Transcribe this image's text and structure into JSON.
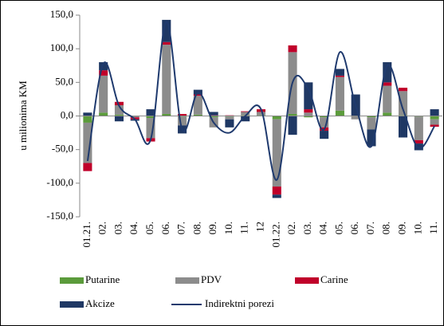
{
  "chart_data": {
    "type": "stacked-bar-line",
    "y_label": "u milionima KM",
    "categories": [
      "01.21.",
      "02.",
      "03.",
      "04.",
      "05.",
      "06.",
      "07.",
      "08.",
      "09.",
      "10.",
      "11.",
      "12",
      "01.22.",
      "02.",
      "03.",
      "04.",
      "05.",
      "06.",
      "07.",
      "08.",
      "09.",
      "10.",
      "11."
    ],
    "series": [
      {
        "name": "Putarine",
        "color": "#5b9b3b",
        "values": [
          -10,
          5,
          2,
          0,
          -3,
          3,
          -1,
          2,
          -2,
          -1,
          1,
          1,
          -5,
          3,
          -2,
          -2,
          8,
          0,
          -2,
          5,
          1,
          -1,
          -5
        ]
      },
      {
        "name": "PDV",
        "color": "#8c8c8c",
        "values": [
          -60,
          55,
          14,
          -2,
          -30,
          103,
          -13,
          28,
          -15,
          -4,
          5,
          5,
          -100,
          92,
          5,
          -15,
          50,
          -5,
          -18,
          40,
          36,
          -35,
          -8
        ]
      },
      {
        "name": "Carine",
        "color": "#c0002a",
        "values": [
          -12,
          8,
          5,
          -3,
          -5,
          4,
          3,
          2,
          1,
          1,
          1,
          4,
          -12,
          10,
          5,
          -5,
          2,
          0,
          0,
          5,
          5,
          -5,
          -3
        ]
      },
      {
        "name": "Akcize",
        "color": "#1f3864",
        "values": [
          5,
          12,
          -8,
          -2,
          10,
          33,
          -12,
          7,
          5,
          -12,
          -8,
          0,
          -5,
          -28,
          40,
          -12,
          10,
          32,
          -25,
          30,
          -32,
          -10,
          10
        ]
      },
      {
        "name": "Indirektni porezi",
        "color": "#1f3a6e",
        "type": "line",
        "values": [
          -67,
          78,
          15,
          -5,
          -35,
          140,
          -20,
          35,
          -10,
          -25,
          0,
          10,
          -95,
          50,
          40,
          -20,
          95,
          15,
          -45,
          75,
          10,
          -48,
          -15
        ]
      }
    ],
    "ylim": [
      -150,
      150
    ],
    "yticks": [
      {
        "value": -150,
        "label": "-150,0"
      },
      {
        "value": -100,
        "label": "-100,0"
      },
      {
        "value": -50,
        "label": "-50,0"
      },
      {
        "value": 0,
        "label": "0,0"
      },
      {
        "value": 50,
        "label": "50,0"
      },
      {
        "value": 100,
        "label": "100,0"
      },
      {
        "value": 150,
        "label": "150,0"
      }
    ]
  }
}
